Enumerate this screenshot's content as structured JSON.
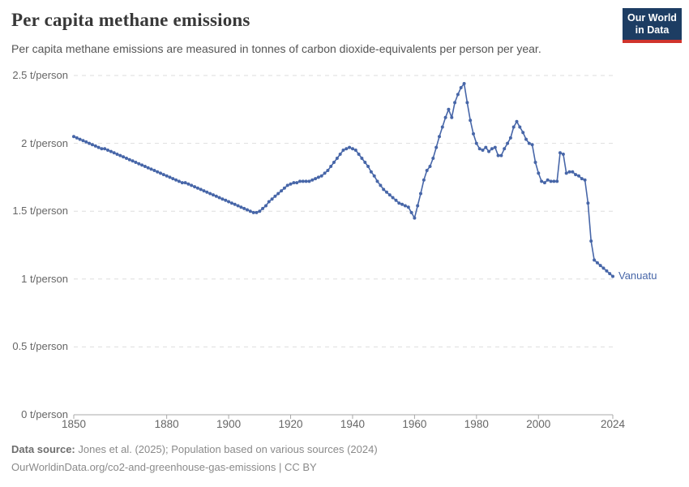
{
  "header": {
    "title": "Per capita methane emissions",
    "logo": {
      "line1": "Our World",
      "line2": "in Data",
      "bg_color": "#1d3d63",
      "accent_color": "#d0342c"
    }
  },
  "subtitle": "Per capita methane emissions are measured in tonnes of carbon dioxide-equivalents per person per year.",
  "footer": {
    "source_label": "Data source:",
    "source_text": " Jones et al. (2025); Population based on various sources (2024)",
    "license_line": "OurWorldinData.org/co2-and-greenhouse-gas-emissions | CC BY"
  },
  "chart_data": {
    "type": "line",
    "title": "Per capita methane emissions",
    "unit": "t/person",
    "end_label": "Vanuatu",
    "line_color": "#4766a8",
    "grid": "horizontal-dashed",
    "xlim": [
      1850,
      2024
    ],
    "ylim": [
      0,
      2.5
    ],
    "xticks": [
      1850,
      1880,
      1900,
      1920,
      1940,
      1960,
      1980,
      2000,
      2024
    ],
    "yticks": [
      {
        "v": 2.5,
        "label": "2.5 t/person"
      },
      {
        "v": 2.0,
        "label": "2 t/person"
      },
      {
        "v": 1.5,
        "label": "1.5 t/person"
      },
      {
        "v": 1.0,
        "label": "1 t/person"
      },
      {
        "v": 0.5,
        "label": "0.5 t/person"
      },
      {
        "v": 0.0,
        "label": "0 t/person"
      }
    ],
    "series": [
      {
        "name": "Vanuatu",
        "color": "#4766a8",
        "x_start": 1850,
        "x_step": 1,
        "x": [
          1850,
          1851,
          1852,
          1853,
          1854,
          1855,
          1856,
          1857,
          1858,
          1859,
          1860,
          1861,
          1862,
          1863,
          1864,
          1865,
          1866,
          1867,
          1868,
          1869,
          1870,
          1871,
          1872,
          1873,
          1874,
          1875,
          1876,
          1877,
          1878,
          1879,
          1880,
          1881,
          1882,
          1883,
          1884,
          1885,
          1886,
          1887,
          1888,
          1889,
          1890,
          1891,
          1892,
          1893,
          1894,
          1895,
          1896,
          1897,
          1898,
          1899,
          1900,
          1901,
          1902,
          1903,
          1904,
          1905,
          1906,
          1907,
          1908,
          1909,
          1910,
          1911,
          1912,
          1913,
          1914,
          1915,
          1916,
          1917,
          1918,
          1919,
          1920,
          1921,
          1922,
          1923,
          1924,
          1925,
          1926,
          1927,
          1928,
          1929,
          1930,
          1931,
          1932,
          1933,
          1934,
          1935,
          1936,
          1937,
          1938,
          1939,
          1940,
          1941,
          1942,
          1943,
          1944,
          1945,
          1946,
          1947,
          1948,
          1949,
          1950,
          1951,
          1952,
          1953,
          1954,
          1955,
          1956,
          1957,
          1958,
          1959,
          1960,
          1961,
          1962,
          1963,
          1964,
          1965,
          1966,
          1967,
          1968,
          1969,
          1970,
          1971,
          1972,
          1973,
          1974,
          1975,
          1976,
          1977,
          1978,
          1979,
          1980,
          1981,
          1982,
          1983,
          1984,
          1985,
          1986,
          1987,
          1988,
          1989,
          1990,
          1991,
          1992,
          1993,
          1994,
          1995,
          1996,
          1997,
          1998,
          1999,
          2000,
          2001,
          2002,
          2003,
          2004,
          2005,
          2006,
          2007,
          2008,
          2009,
          2010,
          2011,
          2012,
          2013,
          2014,
          2015,
          2016,
          2017,
          2018,
          2019,
          2020,
          2021,
          2022,
          2023,
          2024
        ],
        "values": [
          2.05,
          2.04,
          2.03,
          2.02,
          2.01,
          2.0,
          1.99,
          1.98,
          1.97,
          1.96,
          1.96,
          1.95,
          1.94,
          1.93,
          1.92,
          1.91,
          1.9,
          1.89,
          1.88,
          1.87,
          1.86,
          1.85,
          1.84,
          1.83,
          1.82,
          1.81,
          1.8,
          1.79,
          1.78,
          1.77,
          1.76,
          1.75,
          1.74,
          1.73,
          1.72,
          1.71,
          1.71,
          1.7,
          1.69,
          1.68,
          1.67,
          1.66,
          1.65,
          1.64,
          1.63,
          1.62,
          1.61,
          1.6,
          1.59,
          1.58,
          1.57,
          1.56,
          1.55,
          1.54,
          1.53,
          1.52,
          1.51,
          1.5,
          1.49,
          1.49,
          1.5,
          1.52,
          1.54,
          1.57,
          1.59,
          1.61,
          1.63,
          1.65,
          1.67,
          1.69,
          1.7,
          1.71,
          1.71,
          1.72,
          1.72,
          1.72,
          1.72,
          1.73,
          1.74,
          1.75,
          1.76,
          1.78,
          1.8,
          1.83,
          1.86,
          1.89,
          1.92,
          1.95,
          1.96,
          1.97,
          1.96,
          1.95,
          1.92,
          1.89,
          1.86,
          1.83,
          1.79,
          1.76,
          1.72,
          1.69,
          1.66,
          1.64,
          1.62,
          1.6,
          1.58,
          1.56,
          1.55,
          1.54,
          1.53,
          1.49,
          1.45,
          1.54,
          1.63,
          1.73,
          1.8,
          1.83,
          1.89,
          1.97,
          2.05,
          2.12,
          2.19,
          2.25,
          2.19,
          2.3,
          2.36,
          2.41,
          2.44,
          2.3,
          2.17,
          2.07,
          2.0,
          1.96,
          1.95,
          1.97,
          1.94,
          1.96,
          1.97,
          1.91,
          1.91,
          1.96,
          2.0,
          2.04,
          2.12,
          2.16,
          2.12,
          2.08,
          2.03,
          2.0,
          1.99,
          1.86,
          1.78,
          1.72,
          1.71,
          1.73,
          1.72,
          1.72,
          1.72,
          1.93,
          1.92,
          1.78,
          1.79,
          1.79,
          1.77,
          1.76,
          1.74,
          1.73,
          1.56,
          1.28,
          1.14,
          1.12,
          1.1,
          1.08,
          1.06,
          1.04,
          1.02
        ]
      }
    ],
    "layout": {
      "plot_left": 91,
      "plot_right": 756,
      "plot_top": 93,
      "plot_bottom": 511
    }
  }
}
